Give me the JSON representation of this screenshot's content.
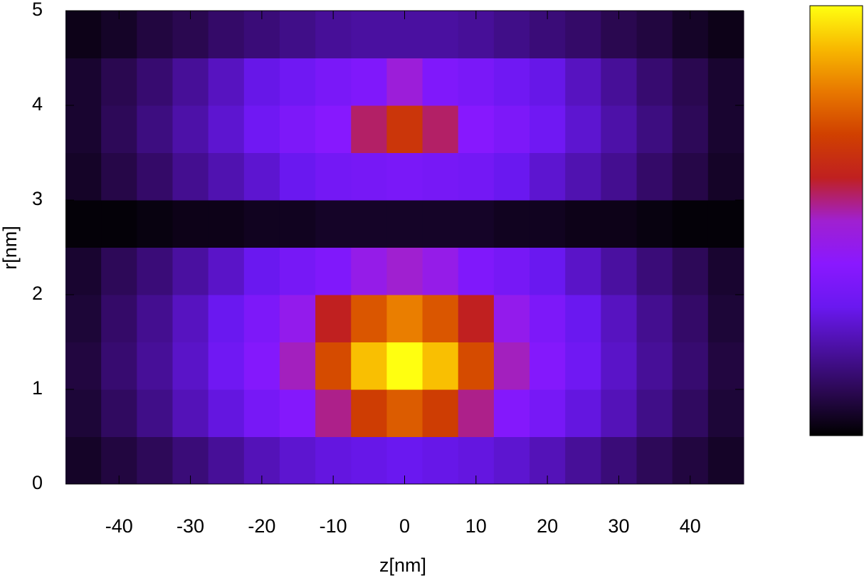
{
  "chart_data": {
    "type": "heatmap",
    "xlabel": "z[nm]",
    "ylabel": "r[nm]",
    "x": [
      -45,
      -40,
      -35,
      -30,
      -25,
      -20,
      -15,
      -10,
      -5,
      0,
      5,
      10,
      15,
      20,
      25,
      30,
      35,
      40,
      45
    ],
    "y": [
      0.25,
      0.75,
      1.25,
      1.75,
      2.25,
      2.75,
      3.25,
      3.75,
      4.25,
      4.75
    ],
    "values": [
      [
        0.05,
        0.08,
        0.11,
        0.15,
        0.19,
        0.23,
        0.26,
        0.28,
        0.29,
        0.3,
        0.29,
        0.28,
        0.26,
        0.23,
        0.19,
        0.15,
        0.11,
        0.08,
        0.05
      ],
      [
        0.07,
        0.12,
        0.17,
        0.23,
        0.28,
        0.34,
        0.38,
        0.54,
        0.69,
        0.75,
        0.69,
        0.54,
        0.38,
        0.34,
        0.28,
        0.23,
        0.17,
        0.12,
        0.07
      ],
      [
        0.08,
        0.14,
        0.19,
        0.25,
        0.32,
        0.38,
        0.51,
        0.72,
        0.91,
        1.0,
        0.91,
        0.72,
        0.51,
        0.38,
        0.32,
        0.25,
        0.19,
        0.14,
        0.08
      ],
      [
        0.07,
        0.13,
        0.18,
        0.24,
        0.3,
        0.36,
        0.44,
        0.6,
        0.74,
        0.81,
        0.74,
        0.6,
        0.44,
        0.36,
        0.3,
        0.24,
        0.18,
        0.13,
        0.07
      ],
      [
        0.06,
        0.11,
        0.15,
        0.2,
        0.25,
        0.3,
        0.34,
        0.37,
        0.45,
        0.5,
        0.45,
        0.37,
        0.34,
        0.3,
        0.25,
        0.2,
        0.15,
        0.11,
        0.06
      ],
      [
        0.01,
        0.01,
        0.02,
        0.03,
        0.03,
        0.04,
        0.04,
        0.05,
        0.05,
        0.05,
        0.05,
        0.05,
        0.04,
        0.04,
        0.03,
        0.03,
        0.02,
        0.01,
        0.01
      ],
      [
        0.05,
        0.09,
        0.13,
        0.18,
        0.22,
        0.26,
        0.3,
        0.33,
        0.34,
        0.35,
        0.34,
        0.33,
        0.3,
        0.26,
        0.22,
        0.18,
        0.13,
        0.09,
        0.05
      ],
      [
        0.06,
        0.11,
        0.16,
        0.21,
        0.26,
        0.32,
        0.36,
        0.39,
        0.56,
        0.67,
        0.56,
        0.39,
        0.36,
        0.32,
        0.26,
        0.21,
        0.16,
        0.11,
        0.06
      ],
      [
        0.06,
        0.1,
        0.14,
        0.19,
        0.24,
        0.29,
        0.32,
        0.35,
        0.37,
        0.48,
        0.37,
        0.35,
        0.32,
        0.29,
        0.24,
        0.19,
        0.14,
        0.1,
        0.06
      ],
      [
        0.03,
        0.05,
        0.08,
        0.1,
        0.13,
        0.15,
        0.17,
        0.19,
        0.2,
        0.2,
        0.2,
        0.19,
        0.17,
        0.15,
        0.13,
        0.1,
        0.08,
        0.05,
        0.03
      ]
    ],
    "xlim": [
      -47.5,
      47.5
    ],
    "ylim": [
      0,
      5
    ],
    "zlim": [
      0,
      1
    ],
    "xticks": [
      -40,
      -30,
      -20,
      -10,
      0,
      10,
      20,
      30,
      40
    ],
    "yticks": [
      0,
      1,
      2,
      3,
      4,
      5
    ],
    "colormap": [
      "#000000",
      "#2a0850",
      "#4a10a0",
      "#6a18f0",
      "#8a18ff",
      "#a020d0",
      "#c02020",
      "#d04000",
      "#e87800",
      "#f8b800",
      "#ffff10"
    ]
  }
}
